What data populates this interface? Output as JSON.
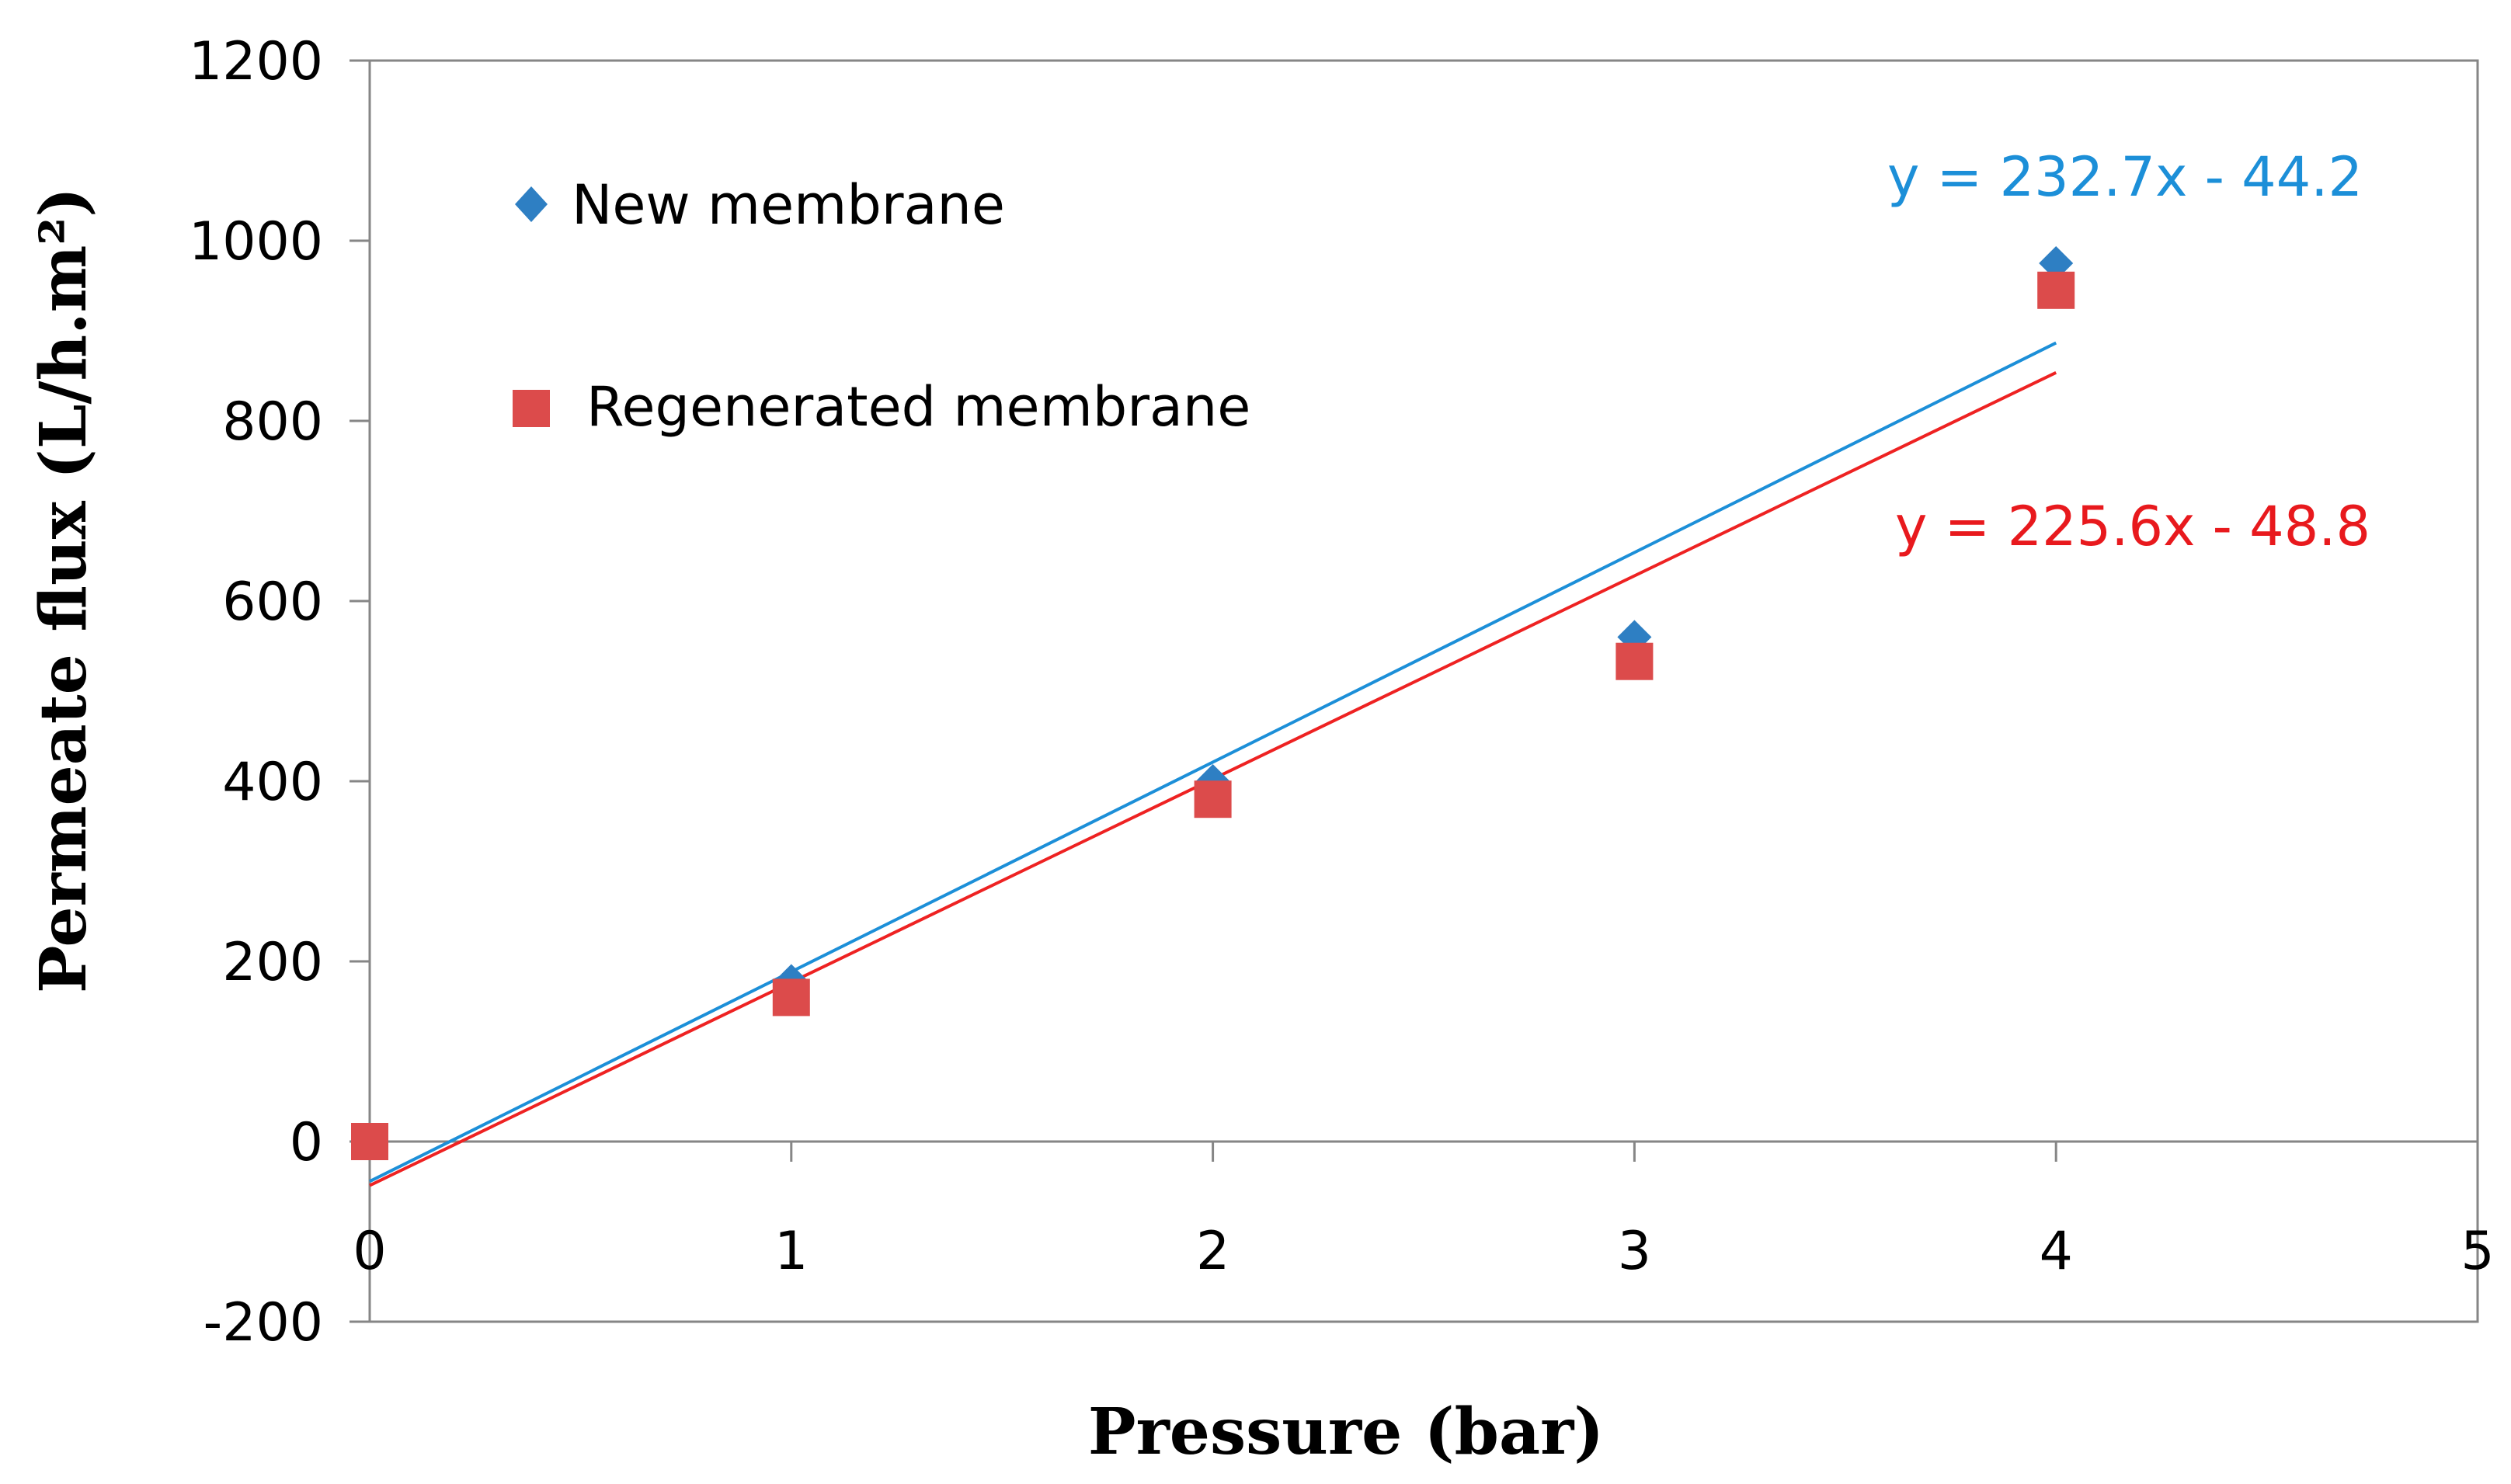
{
  "chart_data": {
    "type": "scatter",
    "xlabel": "Pressure (bar)",
    "ylabel": "Permeate flux (L/h.m²)",
    "xlim": [
      0,
      5
    ],
    "ylim": [
      -200,
      1200
    ],
    "x_ticks": [
      0,
      1,
      2,
      3,
      4,
      5
    ],
    "y_ticks": [
      -200,
      0,
      200,
      400,
      600,
      800,
      1000,
      1200
    ],
    "x_tick_labels": [
      "0",
      "1",
      "2",
      "3",
      "4",
      "5"
    ],
    "y_tick_labels": [
      "-200",
      "0",
      "200",
      "400",
      "600",
      "800",
      "1000",
      "1200"
    ],
    "grid": false,
    "legend_position": "top-left",
    "series": [
      {
        "name": "New membrane",
        "marker": "diamond",
        "color": "#2e7fc3",
        "line_color": "#1c8fd8",
        "x": [
          0,
          1,
          2,
          3,
          4
        ],
        "y": [
          0,
          178,
          400,
          560,
          975
        ],
        "trendline": {
          "slope": 232.7,
          "intercept": -44.2,
          "x_range": [
            0,
            4
          ]
        },
        "equation": "y = 232.7x - 44.2",
        "equation_color": "#1c8fd8"
      },
      {
        "name": "Regenerated membrane",
        "marker": "square",
        "color": "#dc4b4b",
        "line_color": "#ee2222",
        "x": [
          0,
          1,
          2,
          3,
          4
        ],
        "y": [
          0,
          160,
          380,
          533,
          945
        ],
        "trendline": {
          "slope": 225.6,
          "intercept": -48.8,
          "x_range": [
            0,
            4
          ]
        },
        "equation": "y = 225.6x - 48.8",
        "equation_color": "#e8191d"
      }
    ]
  }
}
